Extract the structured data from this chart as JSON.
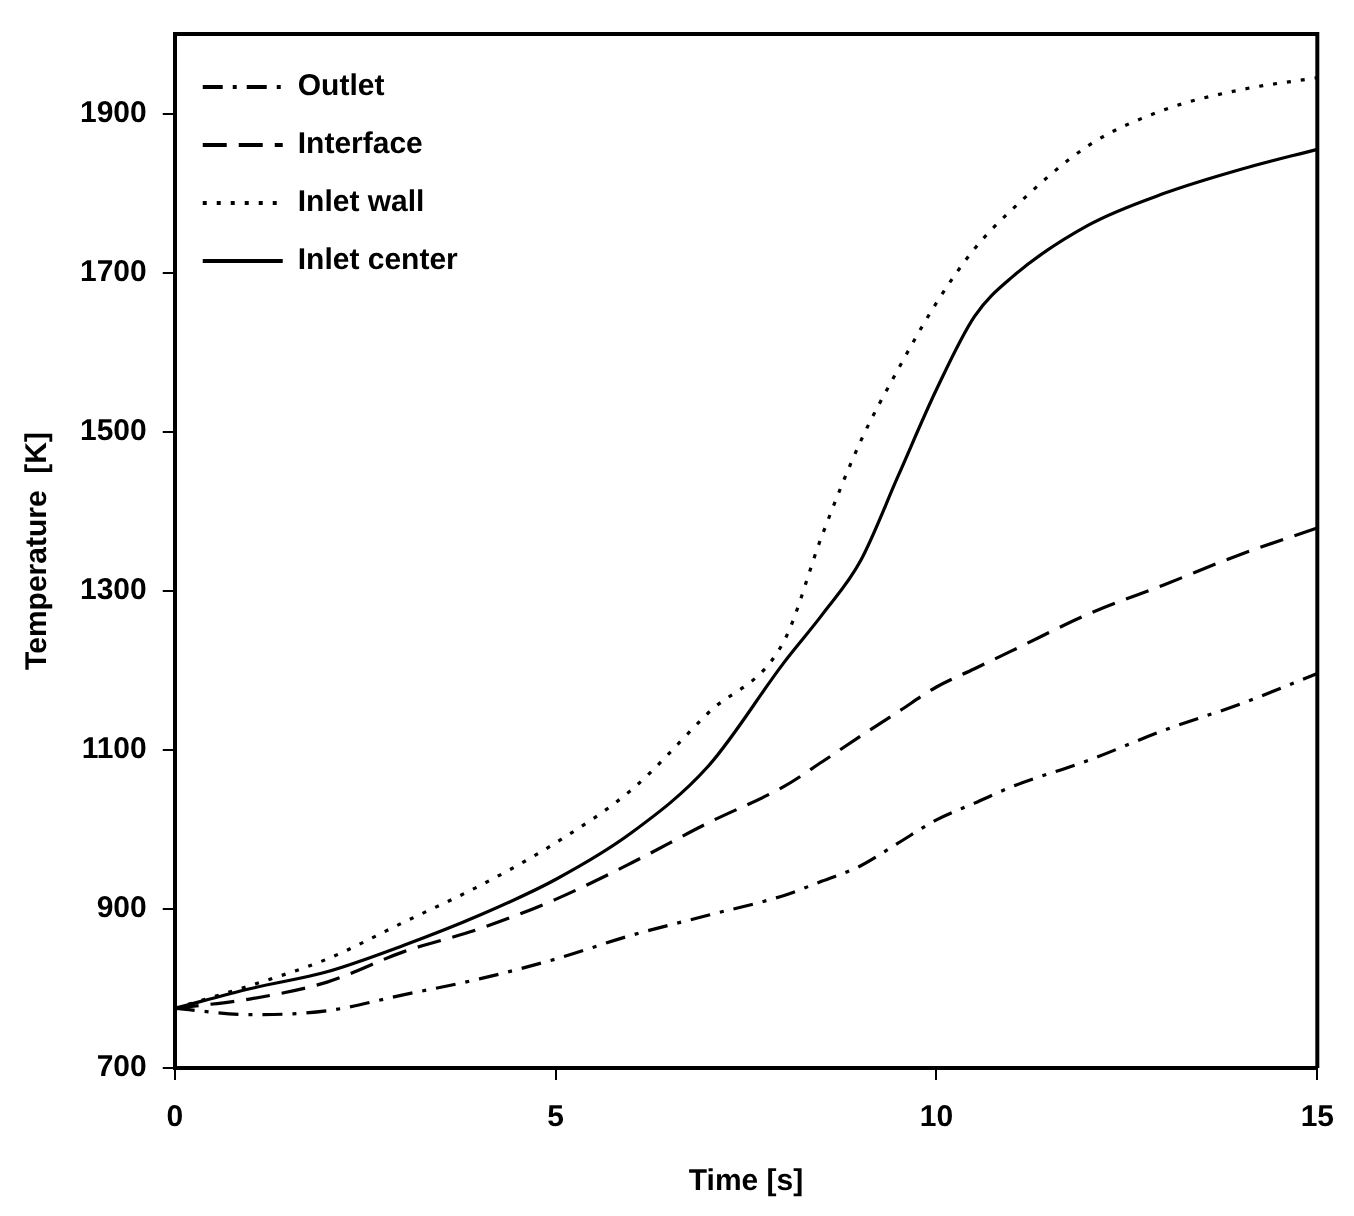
{
  "chart_data": {
    "type": "line",
    "xlabel": "Time [s]",
    "ylabel": "Temperature  [K]",
    "xlim": [
      0,
      15
    ],
    "xticks": [
      0,
      5,
      10,
      15
    ],
    "ylim": [
      700,
      2000
    ],
    "yticks": [
      700,
      900,
      1100,
      1300,
      1500,
      1700,
      1900
    ],
    "grid": false,
    "legend": "top left",
    "marker": "none",
    "x": [
      0,
      1,
      2,
      3,
      4,
      5,
      6,
      7,
      8,
      8.5,
      9,
      9.5,
      10,
      10.5,
      11,
      12,
      13,
      14,
      15
    ],
    "series": [
      {
        "name": "Outlet",
        "color": "#000000",
        "line_style": "dashdot",
        "values": [
          775,
          767,
          772,
          792,
          812,
          837,
          867,
          892,
          917,
          935,
          954,
          983,
          1012,
          1033,
          1054,
          1087,
          1125,
          1158,
          1196
        ]
      },
      {
        "name": "Interface",
        "color": "#000000",
        "line_style": "dashed",
        "values": [
          775,
          787,
          808,
          846,
          875,
          912,
          958,
          1008,
          1054,
          1085,
          1117,
          1148,
          1179,
          1202,
          1225,
          1271,
          1308,
          1346,
          1379
        ]
      },
      {
        "name": "Inlet wall",
        "color": "#000000",
        "line_style": "dotted",
        "values": [
          775,
          804,
          837,
          883,
          929,
          983,
          1050,
          1146,
          1237,
          1370,
          1487,
          1579,
          1662,
          1730,
          1780,
          1860,
          1905,
          1930,
          1945
        ]
      },
      {
        "name": "Inlet center",
        "color": "#000000",
        "line_style": "solid",
        "values": [
          775,
          800,
          821,
          854,
          892,
          937,
          996,
          1079,
          1210,
          1270,
          1337,
          1445,
          1553,
          1645,
          1695,
          1760,
          1800,
          1830,
          1855
        ]
      }
    ]
  }
}
